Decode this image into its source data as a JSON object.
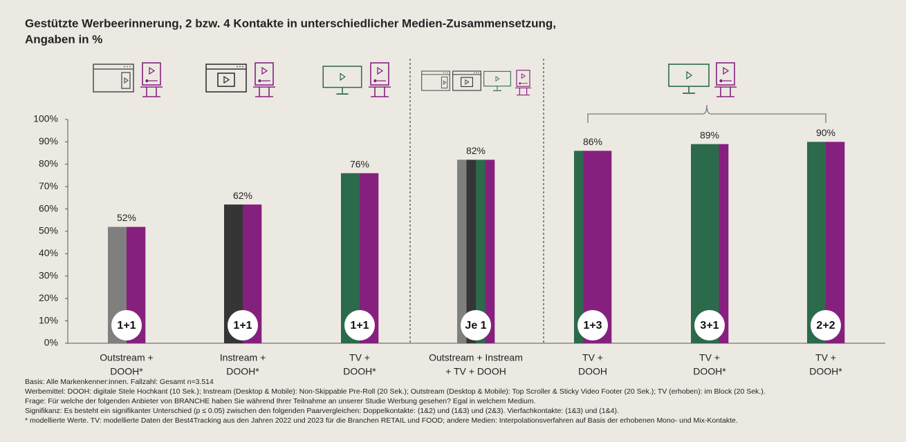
{
  "chart_data": {
    "type": "bar",
    "title": [
      "Gestützte Werbeerinnerung, 2 bzw. 4 Kontakte in unterschiedlicher Medien-Zusammensetzung,",
      "Angaben in %"
    ],
    "categories": [
      [
        "Outstream +",
        "DOOH*"
      ],
      [
        "Instream +",
        "DOOH*"
      ],
      [
        "TV +",
        "DOOH*"
      ],
      [
        "Outstream + Instream",
        "+ TV + DOOH"
      ],
      [
        "TV +",
        "DOOH"
      ],
      [
        "TV +",
        "DOOH*"
      ],
      [
        "TV +",
        "DOOH*"
      ]
    ],
    "values": [
      52,
      62,
      76,
      82,
      86,
      89,
      90
    ],
    "value_labels": [
      "52%",
      "62%",
      "76%",
      "82%",
      "86%",
      "89%",
      "90%"
    ],
    "badges": [
      "1+1",
      "1+1",
      "1+1",
      "Je 1",
      "1+3",
      "3+1",
      "2+2"
    ],
    "bar_colors": [
      [
        "#7f7f7f",
        "#86207e"
      ],
      [
        "#353535",
        "#86207e"
      ],
      [
        "#2b6a4b",
        "#86207e"
      ],
      [
        "#7f7f7f",
        "#353535",
        "#2b6a4b",
        "#86207e"
      ],
      [
        "#2b6a4b",
        "#86207e",
        "#86207e",
        "#86207e"
      ],
      [
        "#2b6a4b",
        "#2b6a4b",
        "#2b6a4b",
        "#86207e"
      ],
      [
        "#2b6a4b",
        "#86207e"
      ]
    ],
    "ylim": [
      0,
      100
    ],
    "yticks": [
      {
        "value": 0,
        "label": "0%"
      },
      {
        "value": 10,
        "label": "10%"
      },
      {
        "value": 20,
        "label": "20%"
      },
      {
        "value": 30,
        "label": "30%"
      },
      {
        "value": 40,
        "label": "40%"
      },
      {
        "value": 50,
        "label": "50%"
      },
      {
        "value": 60,
        "label": "60%"
      },
      {
        "value": 70,
        "label": "70%"
      },
      {
        "value": 80,
        "label": "80%"
      },
      {
        "value": 90,
        "label": "90%"
      },
      {
        "value": 100,
        "label": "100%"
      }
    ],
    "grid": false,
    "notes": [
      "Basis: Alle Markenkenner:innen. Fallzahl: Gesamt n=3.514",
      "Werbemittel: DOOH: digitale Stele Hochkant (10 Sek.); Instream (Desktop & Mobile): Non-Skippable Pre-Roll (20 Sek.); Outstream (Desktop & Mobile): Top Scroller & Sticky Video Footer (20 Sek.); TV (erhoben): im Block (20 Sek.).",
      "Frage: Für welche der folgenden Anbieter von BRANCHE haben Sie während Ihrer Teilnahme an unserer Studie Werbung gesehen? Egal in welchem Medium.",
      "Signifikanz: Es besteht ein signifikanter Unterschied (p ≤ 0.05) zwischen den folgenden Paarvergleichen: Doppelkontakte: (1&2) und (1&3) und (2&3). Vierfachkontakte: (1&3) und (1&4).",
      "* modellierte Werte. TV: modellierte Daten der Best4Tracking aus den Jahren 2022 und 2023 für die Branchen RETAIL und FOOD; andere Medien: Interpolationsverfahren auf Basis der erhobenen Mono- und Mix-Kontakte."
    ]
  }
}
